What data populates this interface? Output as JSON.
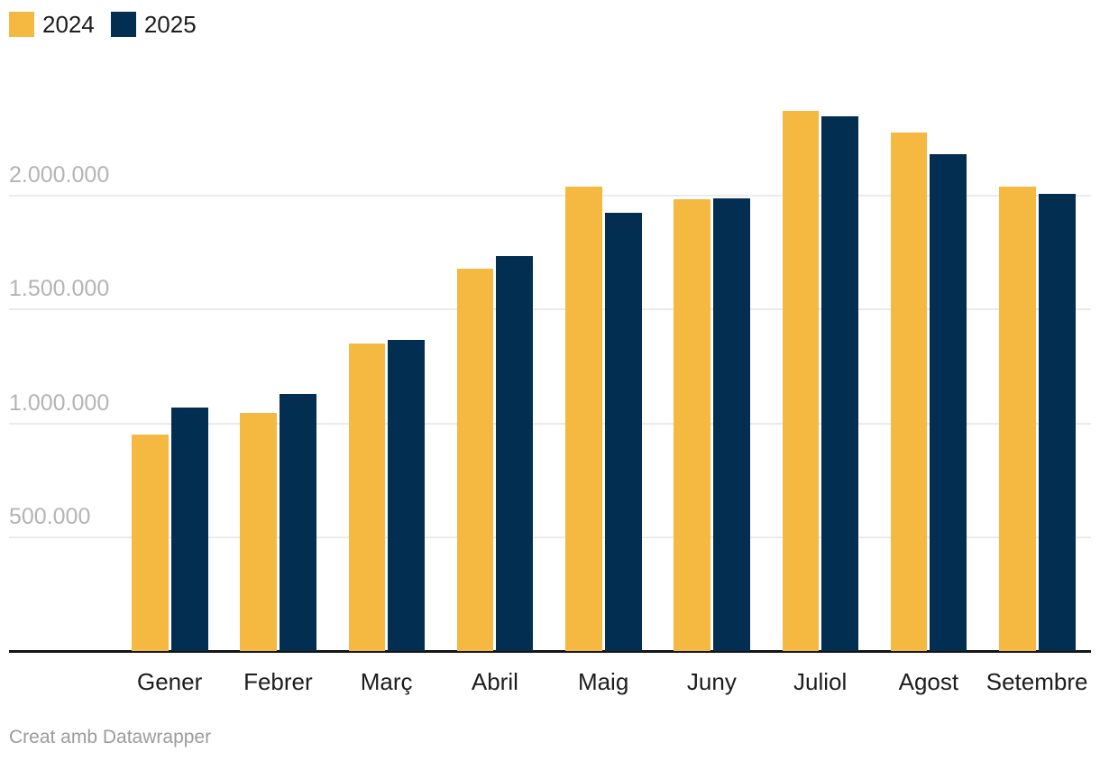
{
  "legend": {
    "items": [
      {
        "label": "2024",
        "color": "#F5B840"
      },
      {
        "label": "2025",
        "color": "#022E52"
      }
    ]
  },
  "footer": {
    "text": "Creat amb Datawrapper"
  },
  "colors": {
    "series_2024": "#F5B840",
    "series_2025": "#022E52",
    "gridline": "#ebebeb",
    "axis_line": "#141414",
    "tick_label": "#b4b4b4",
    "category_label": "#1d1d1d",
    "background": "#ffffff"
  },
  "chart_data": {
    "type": "bar",
    "title": "",
    "categories": [
      "Gener",
      "Febrer",
      "Març",
      "Abril",
      "Maig",
      "Juny",
      "Juliol",
      "Agost",
      "Setembre"
    ],
    "series": [
      {
        "name": "2024",
        "color": "#F5B840",
        "values": [
          950000,
          1045000,
          1350000,
          1680000,
          2040000,
          1985000,
          2375000,
          2280000,
          2040000
        ]
      },
      {
        "name": "2025",
        "color": "#022E52",
        "values": [
          1070000,
          1130000,
          1365000,
          1735000,
          1925000,
          1990000,
          2350000,
          2185000,
          2010000
        ]
      }
    ],
    "xlabel": "",
    "ylabel": "",
    "ylim": [
      0,
      2500000
    ],
    "yticks": [
      {
        "value": 500000,
        "label": "500.000"
      },
      {
        "value": 1000000,
        "label": "1.000.000"
      },
      {
        "value": 1500000,
        "label": "1.500.000"
      },
      {
        "value": 2000000,
        "label": "2.000.000"
      }
    ],
    "grid": true,
    "legend_position": "top-left"
  }
}
